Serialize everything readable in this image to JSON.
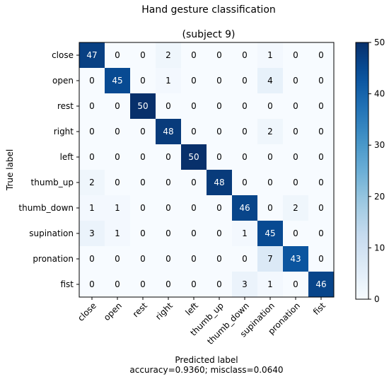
{
  "chart_data": {
    "type": "heatmap",
    "title": "Hand gesture classification",
    "subtitle": "(subject 9)",
    "xlabel": "Predicted label",
    "xlabel_note": "accuracy=0.9360; misclass=0.0640",
    "ylabel": "True label",
    "labels": [
      "close",
      "open",
      "rest",
      "right",
      "left",
      "thumb_up",
      "thumb_down",
      "supination",
      "pronation",
      "fist"
    ],
    "matrix": [
      [
        47,
        0,
        0,
        2,
        0,
        0,
        0,
        1,
        0,
        0
      ],
      [
        0,
        45,
        0,
        1,
        0,
        0,
        0,
        4,
        0,
        0
      ],
      [
        0,
        0,
        50,
        0,
        0,
        0,
        0,
        0,
        0,
        0
      ],
      [
        0,
        0,
        0,
        48,
        0,
        0,
        0,
        2,
        0,
        0
      ],
      [
        0,
        0,
        0,
        0,
        50,
        0,
        0,
        0,
        0,
        0
      ],
      [
        2,
        0,
        0,
        0,
        0,
        48,
        0,
        0,
        0,
        0
      ],
      [
        1,
        1,
        0,
        0,
        0,
        0,
        46,
        0,
        2,
        0
      ],
      [
        3,
        1,
        0,
        0,
        0,
        0,
        1,
        45,
        0,
        0
      ],
      [
        0,
        0,
        0,
        0,
        0,
        0,
        0,
        7,
        43,
        0
      ],
      [
        0,
        0,
        0,
        0,
        0,
        0,
        3,
        1,
        0,
        46
      ]
    ],
    "colormap": "Blues",
    "vmin": 0,
    "vmax": 50,
    "colorbar_ticks": [
      0,
      10,
      20,
      30,
      40,
      50
    ],
    "colors": {
      "low": "#f7fbff",
      "high": "#08306b"
    }
  }
}
